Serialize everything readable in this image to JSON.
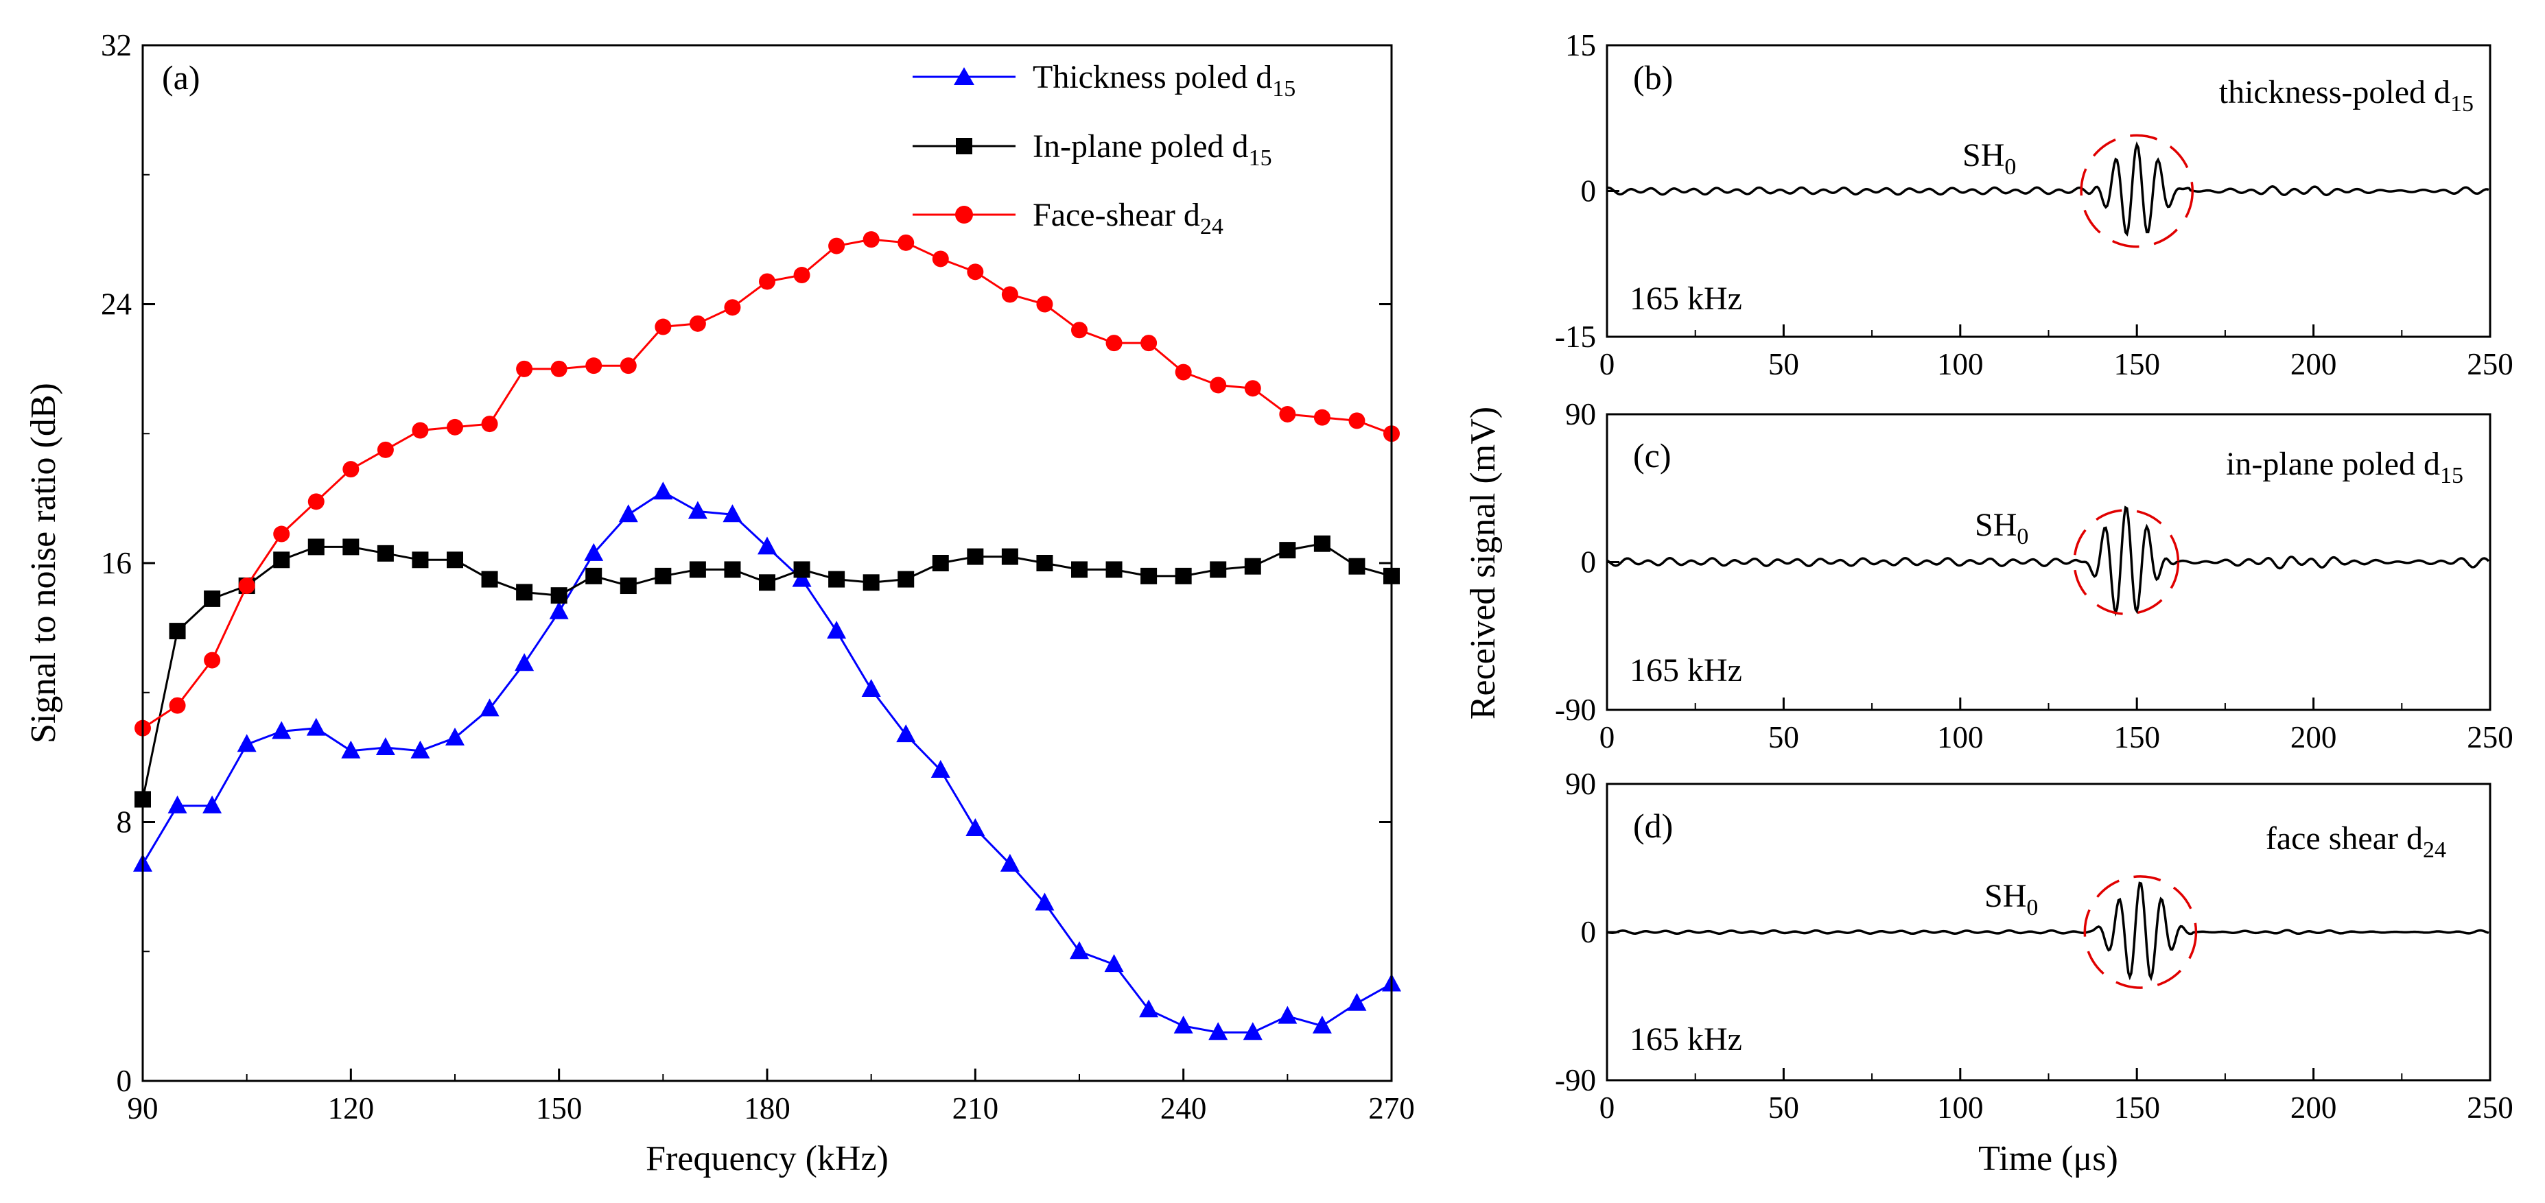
{
  "chart_data": [
    {
      "id": "a",
      "type": "line",
      "panel_label": "(a)",
      "xlabel": "Frequency (kHz)",
      "ylabel": "Signal to noise ratio (dB)",
      "xlim": [
        90,
        270
      ],
      "ylim": [
        0,
        32
      ],
      "xticks": [
        90,
        120,
        150,
        180,
        210,
        240,
        270
      ],
      "yticks": [
        0,
        8,
        16,
        24,
        32
      ],
      "x": [
        90,
        95,
        100,
        105,
        110,
        115,
        120,
        125,
        130,
        135,
        140,
        145,
        150,
        155,
        160,
        165,
        170,
        175,
        180,
        185,
        190,
        195,
        200,
        205,
        210,
        215,
        220,
        225,
        230,
        235,
        240,
        245,
        250,
        255,
        260,
        265,
        270
      ],
      "legend": {
        "position": "top-right"
      },
      "series": [
        {
          "name": "Thickness poled d",
          "name_sub": "15",
          "marker": "triangle",
          "color": "#0000ff",
          "values": [
            6.7,
            8.5,
            8.5,
            10.4,
            10.8,
            10.9,
            10.2,
            10.3,
            10.2,
            10.6,
            11.5,
            12.9,
            14.5,
            16.3,
            17.5,
            18.2,
            17.6,
            17.5,
            16.5,
            15.5,
            13.9,
            12.1,
            10.7,
            9.6,
            7.8,
            6.7,
            5.5,
            4.0,
            3.6,
            2.2,
            1.7,
            1.5,
            1.5,
            2.0,
            1.7,
            2.4,
            3.0
          ]
        },
        {
          "name": "In-plane poled d",
          "name_sub": "15",
          "marker": "square",
          "color": "#000000",
          "values": [
            8.7,
            13.9,
            14.9,
            15.3,
            16.1,
            16.5,
            16.5,
            16.3,
            16.1,
            16.1,
            15.5,
            15.1,
            15.0,
            15.6,
            15.3,
            15.6,
            15.8,
            15.8,
            15.4,
            15.8,
            15.5,
            15.4,
            15.5,
            16.0,
            16.2,
            16.2,
            16.0,
            15.8,
            15.8,
            15.6,
            15.6,
            15.8,
            15.9,
            16.4,
            16.6,
            15.9,
            15.6
          ]
        },
        {
          "name": "Face-shear d",
          "name_sub": "24",
          "marker": "circle",
          "color": "#ff0000",
          "values": [
            10.9,
            11.6,
            13.0,
            15.3,
            16.9,
            17.9,
            18.9,
            19.5,
            20.1,
            20.2,
            20.3,
            22.0,
            22.0,
            22.1,
            22.1,
            23.3,
            23.4,
            23.9,
            24.7,
            24.9,
            25.8,
            26.0,
            25.9,
            25.4,
            25.0,
            24.3,
            24.0,
            23.2,
            22.8,
            22.8,
            21.9,
            21.5,
            21.4,
            20.6,
            20.5,
            20.4,
            20.0
          ]
        }
      ]
    },
    {
      "id": "b",
      "type": "line",
      "panel_label": "(b)",
      "annotation": "thickness-poled d",
      "annotation_sub": "15",
      "mode_label": "SH",
      "mode_sub": "0",
      "freq_label": "165 kHz",
      "xlim": [
        0,
        250
      ],
      "ylim": [
        -15,
        15
      ],
      "xticks": [
        0,
        50,
        100,
        150,
        200,
        250
      ],
      "yticks": [
        -15,
        0,
        15
      ],
      "waveform": {
        "center_us": 150,
        "peak_mv": 5.0,
        "packet_halfwidth_us": 15,
        "noise_mv": 0.45,
        "late_noise_mv": 0.65,
        "period_us": 6.06
      }
    },
    {
      "id": "c",
      "type": "line",
      "panel_label": "(c)",
      "annotation": "in-plane poled d",
      "annotation_sub": "15",
      "mode_label": "SH",
      "mode_sub": "0",
      "freq_label": "165 kHz",
      "xlim": [
        0,
        250
      ],
      "ylim": [
        -90,
        90
      ],
      "xticks": [
        0,
        50,
        100,
        150,
        200,
        250
      ],
      "yticks": [
        -90,
        0,
        90
      ],
      "waveform": {
        "center_us": 147,
        "peak_mv": 35,
        "packet_halfwidth_us": 14,
        "noise_mv": 3.0,
        "late_noise_mv": 5.0,
        "period_us": 6.06
      }
    },
    {
      "id": "d",
      "type": "line",
      "panel_label": "(d)",
      "annotation": "face shear d",
      "annotation_sub": "24",
      "mode_label": "SH",
      "mode_sub": "0",
      "freq_label": "165 kHz",
      "xlim": [
        0,
        250
      ],
      "ylim": [
        -90,
        90
      ],
      "xticks": [
        0,
        50,
        100,
        150,
        200,
        250
      ],
      "yticks": [
        -90,
        0,
        90
      ],
      "waveform": {
        "center_us": 151,
        "peak_mv": 30,
        "packet_halfwidth_us": 15,
        "noise_mv": 1.2,
        "late_noise_mv": 1.5,
        "period_us": 6.06
      }
    }
  ],
  "shared": {
    "right_ylabel": "Received signal (mV)",
    "right_xlabel": "Time (μs)"
  }
}
